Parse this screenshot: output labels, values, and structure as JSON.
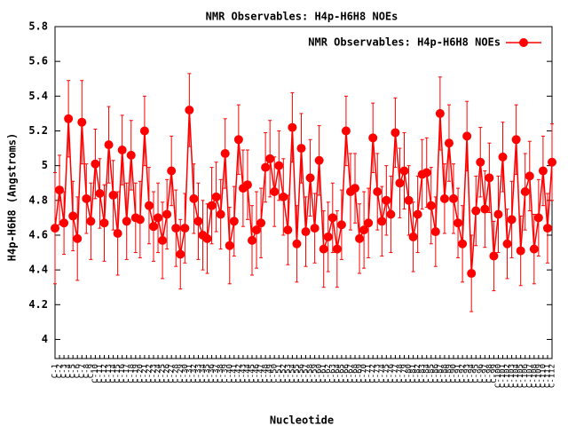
{
  "chart_data": {
    "type": "line",
    "title": "NMR Observables: H4p-H6H8 NOEs",
    "x_label": "Nucleotide",
    "y_label": "H4p-H6H8 (Angstroms)",
    "categories": [
      "C-1",
      "C-2",
      "C-3",
      "C-4",
      "C-5",
      "C-6",
      "C-7",
      "C-8",
      "C-9",
      "C-10",
      "C-11",
      "C-12",
      "C-13",
      "C-14",
      "C-15",
      "C-16",
      "C-17",
      "C-18",
      "C-19",
      "C-20",
      "C-21",
      "C-22",
      "C-23",
      "C-24",
      "C-25",
      "C-26",
      "C-27",
      "C-28",
      "C-29",
      "C-30",
      "C-31",
      "C-32",
      "C-33",
      "C-34",
      "C-35",
      "C-36",
      "C-37",
      "C-38",
      "C-39",
      "C-40",
      "C-41",
      "C-42",
      "C-43",
      "C-44",
      "C-45",
      "C-46",
      "C-47",
      "C-48",
      "C-49",
      "C-50",
      "C-51",
      "C-52",
      "C-53",
      "C-54",
      "C-55",
      "C-56",
      "C-57",
      "C-58",
      "C-59",
      "C-60",
      "C-61",
      "C-62",
      "C-63",
      "C-64",
      "C-65",
      "C-66",
      "C-67",
      "C-68",
      "C-69",
      "C-70",
      "C-71",
      "C-72",
      "C-73",
      "C-74",
      "C-75",
      "C-76",
      "C-77",
      "C-78",
      "C-79",
      "C-80",
      "C-81",
      "C-82",
      "C-83",
      "C-84",
      "C-85",
      "C-86",
      "C-87",
      "C-88",
      "C-89",
      "C-90",
      "C-91",
      "C-92",
      "C-93",
      "C-94",
      "C-95",
      "C-96",
      "C-97",
      "C-98",
      "C-99",
      "C-100",
      "C-101",
      "C-102",
      "C-103",
      "C-104",
      "C-105",
      "C-106",
      "C-107",
      "C-108",
      "C-109",
      "C-110",
      "C-111",
      "C-112"
    ],
    "series": [
      {
        "name": "NMR Observables: H4p-H6H8 NOEs",
        "color": "#ff0000",
        "values": [
          4.64,
          4.86,
          4.67,
          5.27,
          4.71,
          4.58,
          5.25,
          4.81,
          4.68,
          5.01,
          4.84,
          4.67,
          5.12,
          4.83,
          4.61,
          5.09,
          4.68,
          5.06,
          4.7,
          4.69,
          5.2,
          4.77,
          4.65,
          4.7,
          4.57,
          4.72,
          4.97,
          4.64,
          4.49,
          4.64,
          5.32,
          4.81,
          4.68,
          4.6,
          4.58,
          4.77,
          4.82,
          4.72,
          5.07,
          4.54,
          4.68,
          5.15,
          4.87,
          4.89,
          4.57,
          4.63,
          4.67,
          4.99,
          5.04,
          4.85,
          5.0,
          4.82,
          4.63,
          5.22,
          4.55,
          5.1,
          4.62,
          4.93,
          4.64,
          5.03,
          4.52,
          4.59,
          4.7,
          4.52,
          4.66,
          5.2,
          4.85,
          4.87,
          4.58,
          4.63,
          4.67,
          5.16,
          4.85,
          4.68,
          4.8,
          4.72,
          5.19,
          4.9,
          4.97,
          4.8,
          4.59,
          4.72,
          4.95,
          4.96,
          4.77,
          4.62,
          5.3,
          4.81,
          5.13,
          4.81,
          4.67,
          4.55,
          5.17,
          4.38,
          4.74,
          5.02,
          4.75,
          4.93,
          4.48,
          4.72,
          5.05,
          4.55,
          4.69,
          5.15,
          4.51,
          4.85,
          4.94,
          4.52,
          4.7,
          4.97,
          4.64,
          5.02
        ],
        "errors": [
          0.32,
          0.2,
          0.18,
          0.22,
          0.2,
          0.24,
          0.24,
          0.2,
          0.22,
          0.2,
          0.2,
          0.22,
          0.22,
          0.2,
          0.24,
          0.2,
          0.22,
          0.2,
          0.2,
          0.22,
          0.2,
          0.22,
          0.2,
          0.2,
          0.22,
          0.2,
          0.2,
          0.22,
          0.2,
          0.2,
          0.21,
          0.2,
          0.22,
          0.2,
          0.2,
          0.22,
          0.2,
          0.2,
          0.2,
          0.22,
          0.2,
          0.2,
          0.22,
          0.2,
          0.2,
          0.22,
          0.2,
          0.2,
          0.22,
          0.2,
          0.2,
          0.22,
          0.2,
          0.2,
          0.22,
          0.2,
          0.2,
          0.22,
          0.2,
          0.2,
          0.22,
          0.2,
          0.2,
          0.22,
          0.2,
          0.2,
          0.22,
          0.2,
          0.2,
          0.22,
          0.2,
          0.2,
          0.22,
          0.2,
          0.2,
          0.22,
          0.2,
          0.2,
          0.22,
          0.2,
          0.2,
          0.22,
          0.2,
          0.2,
          0.22,
          0.2,
          0.21,
          0.2,
          0.22,
          0.2,
          0.2,
          0.22,
          0.2,
          0.22,
          0.2,
          0.2,
          0.22,
          0.2,
          0.2,
          0.22,
          0.2,
          0.2,
          0.22,
          0.2,
          0.2,
          0.22,
          0.2,
          0.2,
          0.22,
          0.2,
          0.2,
          0.22
        ]
      }
    ],
    "ylim": [
      3.89,
      5.8
    ],
    "yticks": [
      4,
      4.2,
      4.4,
      4.6,
      4.8,
      5,
      5.2,
      5.4,
      5.6,
      5.8
    ],
    "legend": "upper right"
  }
}
